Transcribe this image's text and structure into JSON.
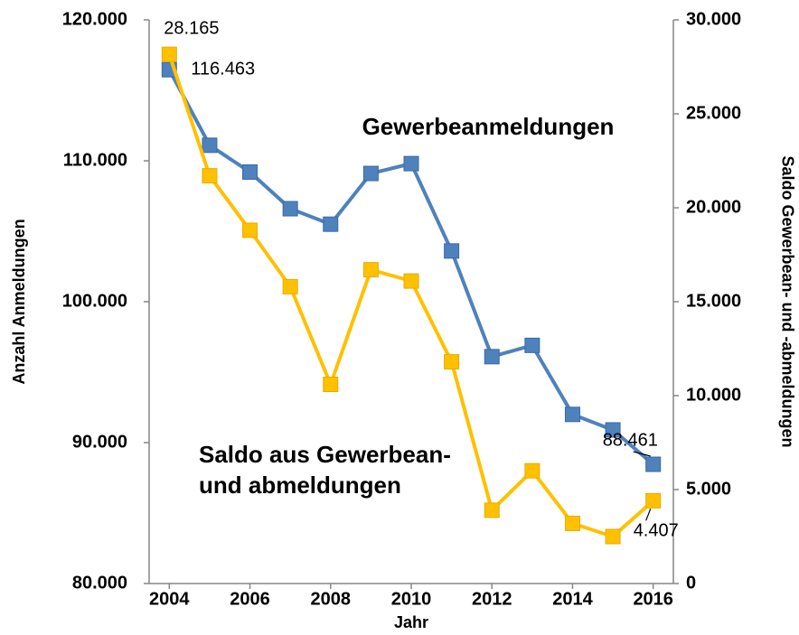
{
  "chart_data": {
    "type": "line",
    "x": [
      2004,
      2005,
      2006,
      2007,
      2008,
      2009,
      2010,
      2011,
      2012,
      2013,
      2014,
      2015,
      2016
    ],
    "xlim": [
      2003.5,
      2016.5
    ],
    "xticks": [
      2004,
      2006,
      2008,
      2010,
      2012,
      2014,
      2016
    ],
    "xlabel": "Jahr",
    "ylabel": "Anzahl Anmeldungen",
    "y2label": "Saldo Gewerbean- und -abmeldungen",
    "ylim": [
      80000,
      120000
    ],
    "yticks": [
      {
        "value": 80000,
        "label": "80.000"
      },
      {
        "value": 90000,
        "label": "90.000"
      },
      {
        "value": 100000,
        "label": "100.000"
      },
      {
        "value": 110000,
        "label": "110.000"
      },
      {
        "value": 120000,
        "label": "120.000"
      }
    ],
    "y2lim": [
      0,
      30000
    ],
    "y2ticks": [
      0,
      {
        "value": 5000,
        "label": "5.000"
      },
      {
        "value": 10000,
        "label": "10.000"
      },
      {
        "value": 15000,
        "label": "15.000"
      },
      {
        "value": 20000,
        "label": "20.000"
      },
      {
        "value": 25000,
        "label": "25.000"
      },
      {
        "value": 30000,
        "label": "30.000"
      }
    ],
    "series": [
      {
        "name": "Gewerbeanmeldungen",
        "color": "#4f81bd",
        "values": [
          116463,
          111100,
          109200,
          106600,
          105500,
          109100,
          109800,
          103600,
          96100,
          96900,
          92000,
          90900,
          88461
        ],
        "value_labels": [
          "116.463",
          null,
          null,
          null,
          null,
          null,
          null,
          null,
          null,
          null,
          null,
          null,
          "88.461"
        ]
      },
      {
        "name": "Saldo aus Gewerbean- und abmeldungen",
        "color": "#ffc000",
        "axis": "y2",
        "values": [
          28165,
          21700,
          18800,
          15800,
          10600,
          16700,
          16100,
          11800,
          3900,
          6000,
          3200,
          2500,
          4407
        ],
        "value_labels": [
          "28.165",
          null,
          null,
          null,
          null,
          null,
          null,
          null,
          null,
          null,
          null,
          null,
          "4.407"
        ]
      }
    ],
    "annotations": [
      {
        "lines": [
          "Gewerbeanmeldungen"
        ]
      },
      {
        "lines": [
          "Saldo aus Gewerbean-",
          "und abmeldungen"
        ]
      }
    ]
  }
}
